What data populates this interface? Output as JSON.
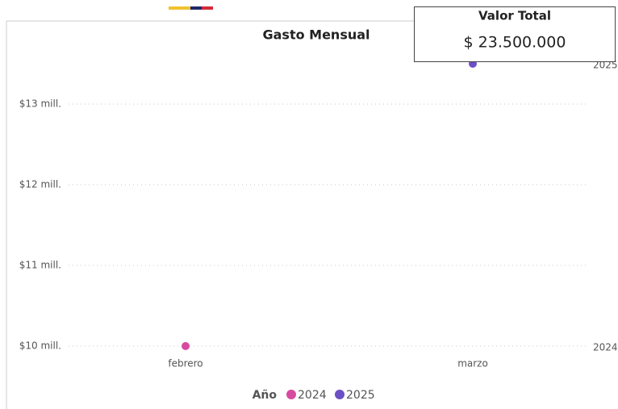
{
  "chart_data": {
    "type": "line",
    "title": "Gasto Mensual",
    "categories": [
      "febrero",
      "marzo"
    ],
    "series": [
      {
        "name": "2024",
        "color": "#d64ba0",
        "values": [
          10,
          null
        ]
      },
      {
        "name": "2025",
        "color": "#6b4fc4",
        "values": [
          null,
          13.5
        ]
      }
    ],
    "ylim": [
      9.9,
      13.55
    ],
    "yticks": [
      {
        "value": 10,
        "label": "$10 mill."
      },
      {
        "value": 11,
        "label": "$11 mill."
      },
      {
        "value": 12,
        "label": "$12 mill."
      },
      {
        "value": 13,
        "label": "$13 mill."
      }
    ],
    "grid": true,
    "legend_title": "Año",
    "legend": "bottom"
  },
  "card": {
    "title": "Valor Total",
    "value": "$ 23.500.000"
  }
}
